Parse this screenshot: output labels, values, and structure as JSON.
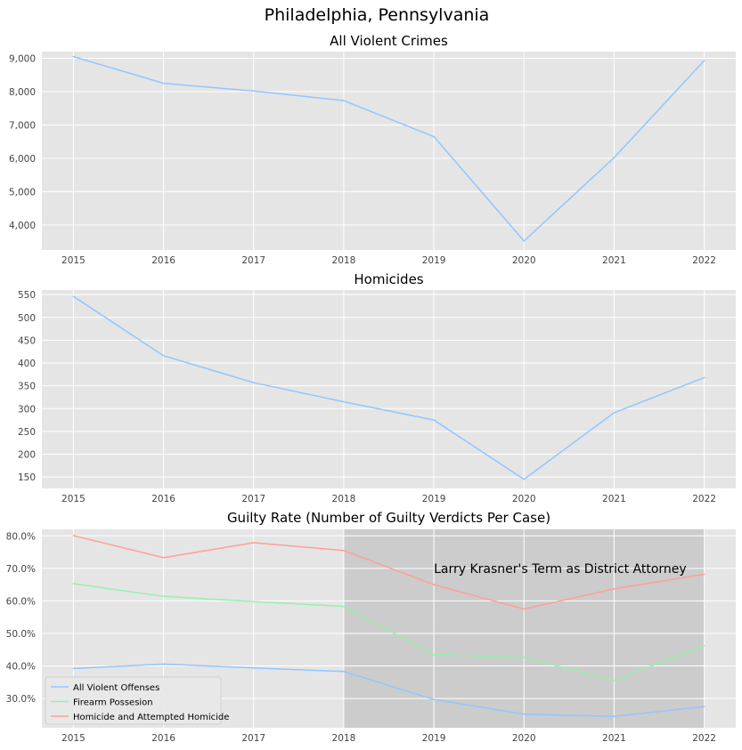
{
  "figure": {
    "title": "Philadelphia, Pennsylvania"
  },
  "colors": {
    "background": "#e5e5e5",
    "grid": "#ffffff",
    "shade": "#cccccc",
    "blue": "#92c6ff",
    "green": "#97f0aa",
    "red": "#ff9f9a"
  },
  "chart_data": [
    {
      "type": "line",
      "title": "All Violent Crimes",
      "x": [
        2015,
        2016,
        2017,
        2018,
        2019,
        2020,
        2021,
        2022
      ],
      "xticks": [
        "2015",
        "2016",
        "2017",
        "2018",
        "2019",
        "2020",
        "2021",
        "2022"
      ],
      "ylim": [
        3250,
        9200
      ],
      "yticks": [
        4000,
        5000,
        6000,
        7000,
        8000,
        9000
      ],
      "ytick_labels": [
        "4,000",
        "5,000",
        "6,000",
        "7,000",
        "8,000",
        "9,000"
      ],
      "grid": true,
      "series": [
        {
          "color": "#92c6ff",
          "values": [
            9050,
            8250,
            8020,
            7730,
            6650,
            3520,
            6020,
            8930
          ]
        }
      ]
    },
    {
      "type": "line",
      "title": "Homicides",
      "x": [
        2015,
        2016,
        2017,
        2018,
        2019,
        2020,
        2021,
        2022
      ],
      "xticks": [
        "2015",
        "2016",
        "2017",
        "2018",
        "2019",
        "2020",
        "2021",
        "2022"
      ],
      "ylim": [
        125,
        560
      ],
      "yticks": [
        150,
        200,
        250,
        300,
        350,
        400,
        450,
        500,
        550
      ],
      "ytick_labels": [
        "150",
        "200",
        "250",
        "300",
        "350",
        "400",
        "450",
        "500",
        "550"
      ],
      "grid": true,
      "series": [
        {
          "color": "#92c6ff",
          "values": [
            546,
            416,
            357,
            315,
            275,
            145,
            291,
            368
          ]
        }
      ]
    },
    {
      "type": "line",
      "title": "Guilty Rate (Number of Guilty Verdicts Per Case)",
      "x": [
        2015,
        2016,
        2017,
        2018,
        2019,
        2020,
        2021,
        2022
      ],
      "xticks": [
        "2015",
        "2016",
        "2017",
        "2018",
        "2019",
        "2020",
        "2021",
        "2022"
      ],
      "ylim": [
        0.21,
        0.82
      ],
      "yticks": [
        0.3,
        0.4,
        0.5,
        0.6,
        0.7,
        0.8
      ],
      "ytick_labels": [
        "30.0%",
        "40.0%",
        "50.0%",
        "60.0%",
        "70.0%",
        "80.0%"
      ],
      "grid": true,
      "legend": "lower-left",
      "series": [
        {
          "name": "All Violent Offenses",
          "color": "#92c6ff",
          "values": [
            0.392,
            0.406,
            0.394,
            0.383,
            0.297,
            0.252,
            0.245,
            0.275
          ]
        },
        {
          "name": "Firearm Possesion",
          "color": "#97f0aa",
          "values": [
            0.653,
            0.614,
            0.598,
            0.583,
            0.435,
            0.426,
            0.356,
            0.462
          ]
        },
        {
          "name": "Homicide and Attempted Homicide",
          "color": "#ff9f9a",
          "values": [
            0.801,
            0.733,
            0.779,
            0.755,
            0.65,
            0.575,
            0.637,
            0.682
          ]
        }
      ],
      "shaded_span": {
        "x": [
          2018,
          2022
        ]
      },
      "annotation": {
        "text": "Larry Krasner's Term as District Attorney",
        "x": 2019,
        "y": 0.7
      }
    }
  ]
}
